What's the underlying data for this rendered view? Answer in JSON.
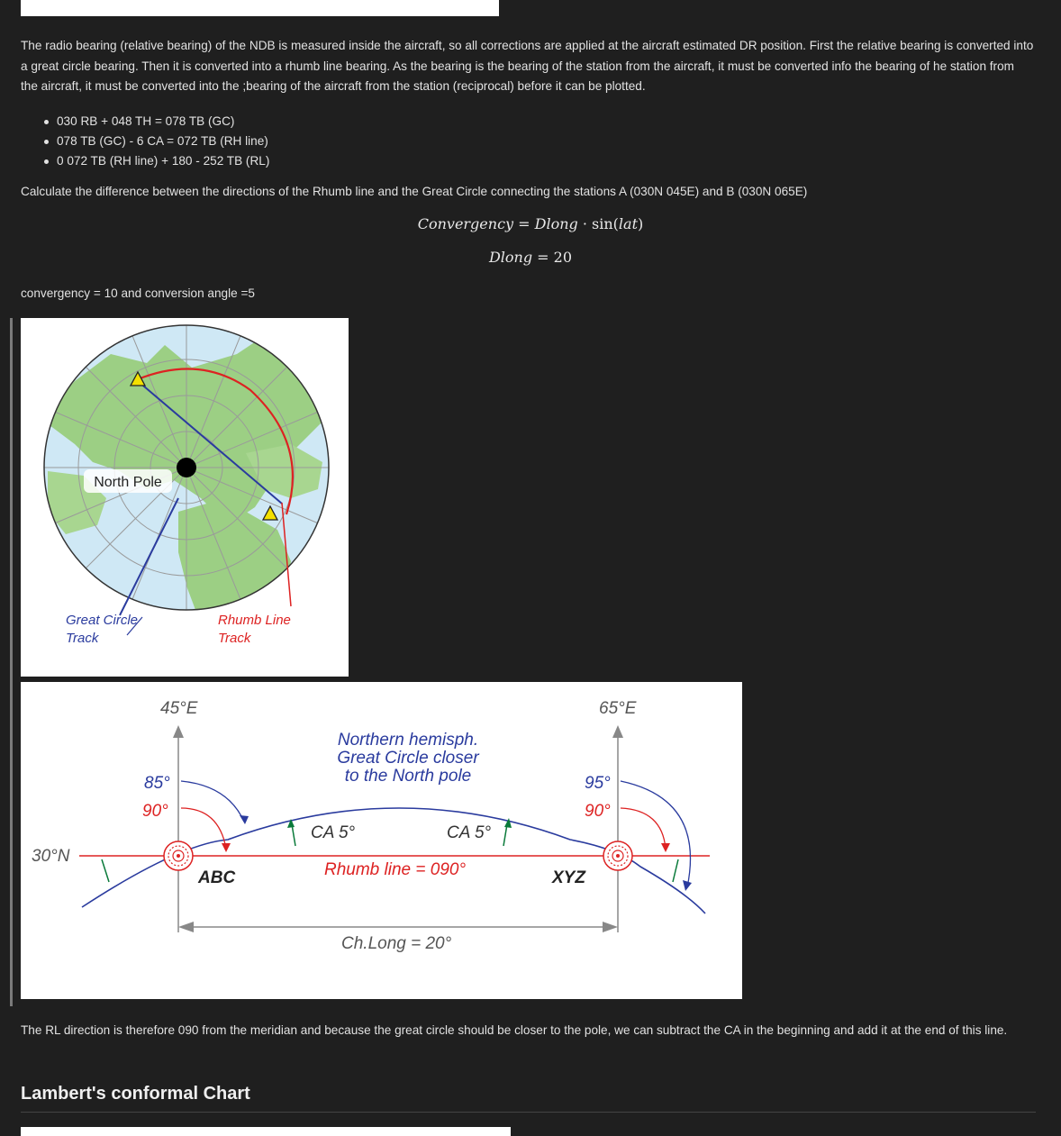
{
  "intro_paragraph": "The radio bearing (relative bearing) of the NDB is measured inside the aircraft, so all corrections are applied at the aircraft estimated DR position. First the relative bearing is converted into a great circle bearing. Then it is converted into a rhumb line bearing. As the bearing is the bearing of the station from the aircraft, it must be converted info the bearing of he station from the aircraft, it must be converted into the ;bearing of the aircraft from the station (reciprocal) before it can be plotted.",
  "steps": [
    "030 RB + 048 TH = 078 TB (GC)",
    "078 TB (GC) - 6 CA = 072 TB (RH line)",
    "0 072 TB (RH line) + 180 - 252 TB (RL)"
  ],
  "question": "Calculate the difference between the directions of the Rhumb line and the Great Circle connecting the stations A (030N 045E) and B (030N 065E)",
  "formula1": {
    "lhs": "Convergency",
    "eq": " = ",
    "rhs_a": "Dlong",
    "dot": " · sin(",
    "rhs_b": "lat",
    "close": ")"
  },
  "formula2": {
    "lhs": "Dlong",
    "eq": " = 20"
  },
  "result": "convergency = 10 and conversion angle =5",
  "figure_polar": {
    "pole_label": "North Pole",
    "gc_label_1": "Great Circle",
    "gc_label_2": "Track",
    "rl_label_1": "Rhumb Line",
    "rl_label_2": "Track"
  },
  "figure_mercator": {
    "lon_left": "45°E",
    "lon_right": "65°E",
    "lat": "30°N",
    "note_1": "Northern hemisph.",
    "note_2": "Great Circle closer",
    "note_3": "to the North pole",
    "left_gc": "85°",
    "left_rl": "90°",
    "right_gc": "95°",
    "right_rl": "90°",
    "ca_left": "CA 5°",
    "ca_right": "CA 5°",
    "rhumb": "Rhumb line = 090°",
    "station_a": "ABC",
    "station_b": "XYZ",
    "chlong": "Ch.Long = 20°"
  },
  "conclusion": "The RL direction is therefore 090 from the meridian and because the great circle should be closer to the pole, we can subtract the CA in the beginning and add it at the end of this line.",
  "section_heading": "Lambert's conformal Chart"
}
